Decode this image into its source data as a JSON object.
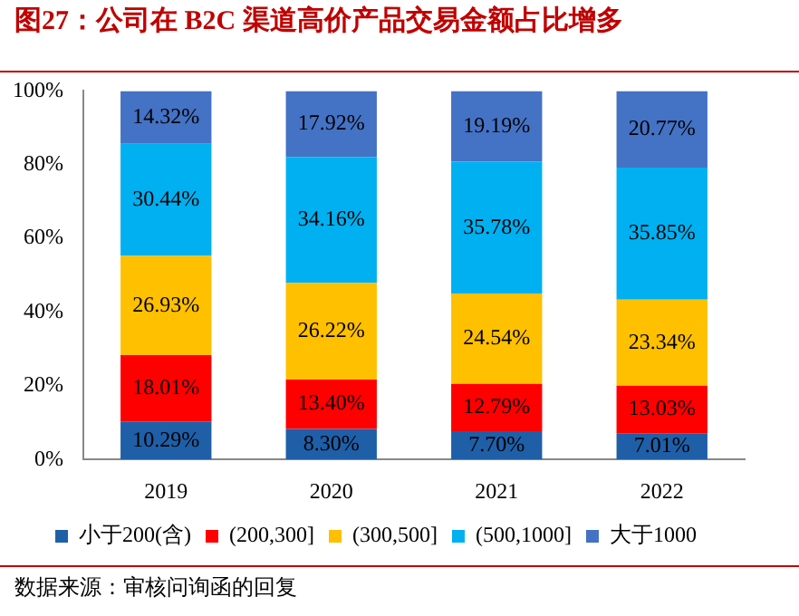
{
  "chart_data": {
    "type": "bar",
    "title": "图27：公司在 B2C 渠道高价产品交易金额占比增多",
    "categories": [
      "2019",
      "2020",
      "2021",
      "2022"
    ],
    "stacked": true,
    "ylim": [
      0,
      100
    ],
    "yticks": [
      {
        "value": 0,
        "label": "0%"
      },
      {
        "value": 20,
        "label": "20%"
      },
      {
        "value": 40,
        "label": "40%"
      },
      {
        "value": 60,
        "label": "60%"
      },
      {
        "value": 80,
        "label": "80%"
      },
      {
        "value": 100,
        "label": "100%"
      }
    ],
    "legend": "bottom",
    "series": [
      {
        "name": "小于200(含)",
        "color": "#1f5fa8",
        "values": [
          10.29,
          8.3,
          7.7,
          7.01
        ],
        "value_labels": [
          "10.29%",
          "8.30%",
          "7.70%",
          "7.01%"
        ]
      },
      {
        "name": "(200,300]",
        "color": "#ff0000",
        "values": [
          18.01,
          13.4,
          12.79,
          13.03
        ],
        "value_labels": [
          "18.01%",
          "13.40%",
          "12.79%",
          "13.03%"
        ]
      },
      {
        "name": "(300,500]",
        "color": "#ffc000",
        "values": [
          26.93,
          26.22,
          24.54,
          23.34
        ],
        "value_labels": [
          "26.93%",
          "26.22%",
          "24.54%",
          "23.34%"
        ]
      },
      {
        "name": "(500,1000]",
        "color": "#00b0f0",
        "values": [
          30.44,
          34.16,
          35.78,
          35.85
        ],
        "value_labels": [
          "30.44%",
          "34.16%",
          "35.78%",
          "35.85%"
        ]
      },
      {
        "name": "大于1000",
        "color": "#4472c4",
        "values": [
          14.32,
          17.92,
          19.19,
          20.77
        ],
        "value_labels": [
          "14.32%",
          "17.92%",
          "19.19%",
          "20.77%"
        ]
      }
    ],
    "annotations": [
      "数据来源：审核问询函的回复"
    ]
  }
}
